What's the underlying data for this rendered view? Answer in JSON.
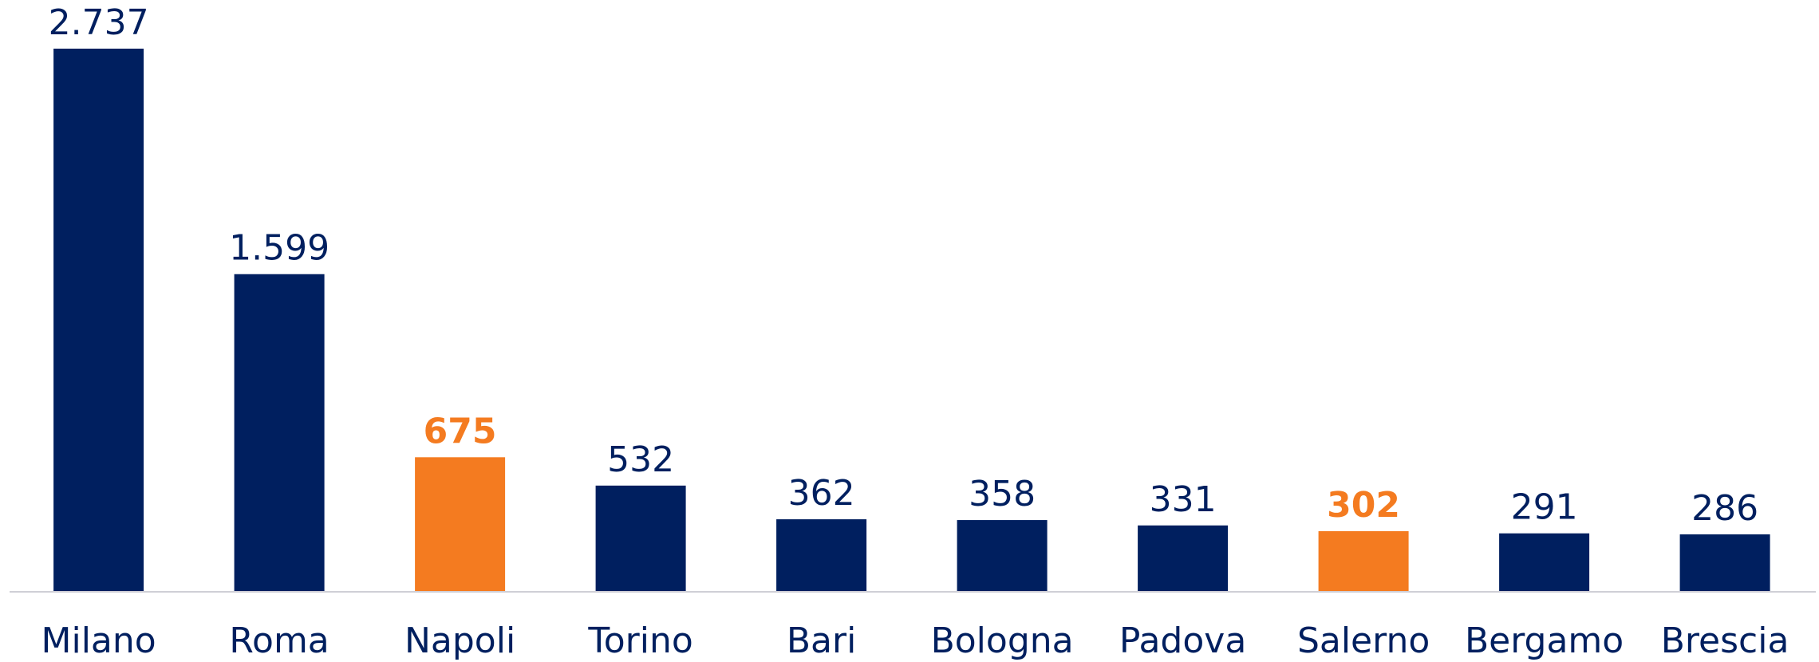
{
  "chart_data": {
    "type": "bar",
    "categories": [
      "Milano",
      "Roma",
      "Napoli",
      "Torino",
      "Bari",
      "Bologna",
      "Padova",
      "Salerno",
      "Bergamo",
      "Brescia"
    ],
    "values": [
      2737,
      1599,
      675,
      532,
      362,
      358,
      331,
      302,
      291,
      286
    ],
    "value_labels": [
      "2.737",
      "1.599",
      "675",
      "532",
      "362",
      "358",
      "331",
      "302",
      "291",
      "286"
    ],
    "colors": [
      "#001f5f",
      "#001f5f",
      "#f47b20",
      "#001f5f",
      "#001f5f",
      "#001f5f",
      "#001f5f",
      "#f47b20",
      "#001f5f",
      "#001f5f"
    ],
    "grid": false
  }
}
